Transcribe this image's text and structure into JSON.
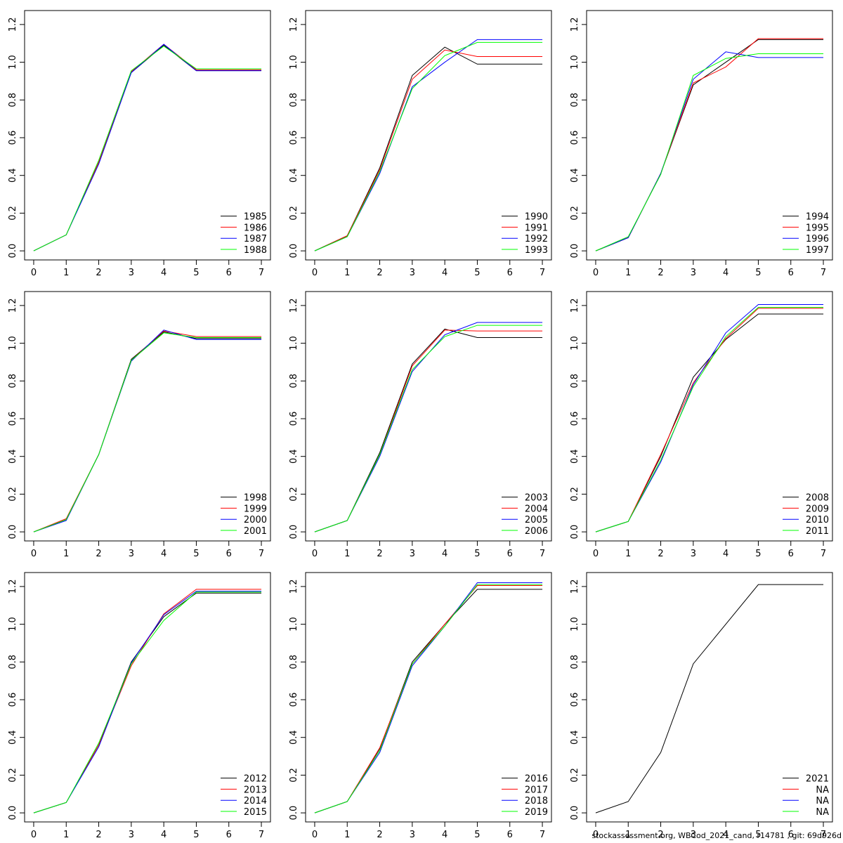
{
  "chart_data": [
    {
      "type": "line",
      "legend": "bottomright",
      "x": [
        0,
        1,
        2,
        3,
        4,
        5,
        6,
        7
      ],
      "xlim": [
        -0.28,
        7.28
      ],
      "xticks": [
        0,
        1,
        2,
        3,
        4,
        5,
        6,
        7
      ],
      "ylim": [
        -0.048,
        1.274
      ],
      "yticks": [
        {
          "value": 0,
          "label": "0.0"
        },
        0.2,
        0.4,
        0.6,
        0.8,
        {
          "value": 1,
          "label": "1.0"
        },
        1.2
      ],
      "series": [
        {
          "name": "1985",
          "color": "#000000",
          "values": [
            0,
            0.085,
            0.47,
            0.945,
            1.09,
            0.955,
            0.955,
            0.955
          ]
        },
        {
          "name": "1986",
          "color": "#ff0000",
          "values": [
            0,
            0.085,
            0.47,
            0.95,
            1.095,
            0.96,
            0.96,
            0.96
          ]
        },
        {
          "name": "1987",
          "color": "#0000ff",
          "values": [
            0,
            0.085,
            0.46,
            0.945,
            1.095,
            0.955,
            0.955,
            0.955
          ]
        },
        {
          "name": "1988",
          "color": "#00ff00",
          "values": [
            0,
            0.085,
            0.48,
            0.955,
            1.085,
            0.965,
            0.965,
            0.965
          ]
        }
      ]
    },
    {
      "type": "line",
      "legend": "bottomright",
      "x": [
        0,
        1,
        2,
        3,
        4,
        5,
        6,
        7
      ],
      "xlim": [
        -0.28,
        7.28
      ],
      "xticks": [
        0,
        1,
        2,
        3,
        4,
        5,
        6,
        7
      ],
      "ylim": [
        -0.048,
        1.274
      ],
      "yticks": [
        {
          "value": 0,
          "label": "0.0"
        },
        0.2,
        0.4,
        0.6,
        0.8,
        {
          "value": 1,
          "label": "1.0"
        },
        1.2
      ],
      "series": [
        {
          "name": "1990",
          "color": "#000000",
          "values": [
            0,
            0.08,
            0.44,
            0.93,
            1.08,
            0.99,
            0.99,
            0.99
          ]
        },
        {
          "name": "1991",
          "color": "#ff0000",
          "values": [
            0,
            0.08,
            0.43,
            0.91,
            1.065,
            1.03,
            1.03,
            1.03
          ]
        },
        {
          "name": "1992",
          "color": "#0000ff",
          "values": [
            0,
            0.075,
            0.41,
            0.87,
            1.0,
            1.12,
            1.12,
            1.12
          ]
        },
        {
          "name": "1993",
          "color": "#00ff00",
          "values": [
            0,
            0.075,
            0.42,
            0.86,
            1.035,
            1.105,
            1.105,
            1.105
          ]
        }
      ]
    },
    {
      "type": "line",
      "legend": "bottomright",
      "x": [
        0,
        1,
        2,
        3,
        4,
        5,
        6,
        7
      ],
      "xlim": [
        -0.28,
        7.28
      ],
      "xticks": [
        0,
        1,
        2,
        3,
        4,
        5,
        6,
        7
      ],
      "ylim": [
        -0.048,
        1.274
      ],
      "yticks": [
        {
          "value": 0,
          "label": "0.0"
        },
        0.2,
        0.4,
        0.6,
        0.8,
        {
          "value": 1,
          "label": "1.0"
        },
        1.2
      ],
      "series": [
        {
          "name": "1994",
          "color": "#000000",
          "values": [
            0,
            0.07,
            0.41,
            0.88,
            1.0,
            1.12,
            1.12,
            1.12
          ]
        },
        {
          "name": "1995",
          "color": "#ff0000",
          "values": [
            0,
            0.07,
            0.41,
            0.89,
            0.975,
            1.125,
            1.125,
            1.125
          ]
        },
        {
          "name": "1996",
          "color": "#0000ff",
          "values": [
            0,
            0.07,
            0.41,
            0.91,
            1.055,
            1.025,
            1.025,
            1.025
          ]
        },
        {
          "name": "1997",
          "color": "#00ff00",
          "values": [
            0,
            0.075,
            0.405,
            0.93,
            1.02,
            1.045,
            1.045,
            1.045
          ]
        }
      ]
    },
    {
      "type": "line",
      "legend": "bottomright",
      "x": [
        0,
        1,
        2,
        3,
        4,
        5,
        6,
        7
      ],
      "xlim": [
        -0.28,
        7.28
      ],
      "xticks": [
        0,
        1,
        2,
        3,
        4,
        5,
        6,
        7
      ],
      "ylim": [
        -0.048,
        1.274
      ],
      "yticks": [
        {
          "value": 0,
          "label": "0.0"
        },
        0.2,
        0.4,
        0.6,
        0.8,
        {
          "value": 1,
          "label": "1.0"
        },
        1.2
      ],
      "series": [
        {
          "name": "1998",
          "color": "#000000",
          "values": [
            0,
            0.065,
            0.41,
            0.915,
            1.06,
            1.025,
            1.025,
            1.025
          ]
        },
        {
          "name": "1999",
          "color": "#ff0000",
          "values": [
            0,
            0.07,
            0.41,
            0.91,
            1.065,
            1.035,
            1.035,
            1.035
          ]
        },
        {
          "name": "2000",
          "color": "#0000ff",
          "values": [
            0,
            0.06,
            0.41,
            0.905,
            1.07,
            1.02,
            1.02,
            1.02
          ]
        },
        {
          "name": "2001",
          "color": "#00ff00",
          "values": [
            0,
            0.065,
            0.41,
            0.91,
            1.055,
            1.03,
            1.03,
            1.03
          ]
        }
      ]
    },
    {
      "type": "line",
      "legend": "bottomright",
      "x": [
        0,
        1,
        2,
        3,
        4,
        5,
        6,
        7
      ],
      "xlim": [
        -0.28,
        7.28
      ],
      "xticks": [
        0,
        1,
        2,
        3,
        4,
        5,
        6,
        7
      ],
      "ylim": [
        -0.048,
        1.274
      ],
      "yticks": [
        {
          "value": 0,
          "label": "0.0"
        },
        0.2,
        0.4,
        0.6,
        0.8,
        {
          "value": 1,
          "label": "1.0"
        },
        1.2
      ],
      "series": [
        {
          "name": "2003",
          "color": "#000000",
          "values": [
            0,
            0.06,
            0.42,
            0.89,
            1.075,
            1.03,
            1.03,
            1.03
          ]
        },
        {
          "name": "2004",
          "color": "#ff0000",
          "values": [
            0,
            0.06,
            0.41,
            0.88,
            1.07,
            1.065,
            1.065,
            1.065
          ]
        },
        {
          "name": "2005",
          "color": "#0000ff",
          "values": [
            0,
            0.06,
            0.4,
            0.85,
            1.045,
            1.11,
            1.11,
            1.11
          ]
        },
        {
          "name": "2006",
          "color": "#00ff00",
          "values": [
            0,
            0.06,
            0.41,
            0.86,
            1.035,
            1.095,
            1.095,
            1.095
          ]
        }
      ]
    },
    {
      "type": "line",
      "legend": "bottomright",
      "x": [
        0,
        1,
        2,
        3,
        4,
        5,
        6,
        7
      ],
      "xlim": [
        -0.28,
        7.28
      ],
      "xticks": [
        0,
        1,
        2,
        3,
        4,
        5,
        6,
        7
      ],
      "ylim": [
        -0.048,
        1.274
      ],
      "yticks": [
        {
          "value": 0,
          "label": "0.0"
        },
        0.2,
        0.4,
        0.6,
        0.8,
        {
          "value": 1,
          "label": "1.0"
        },
        1.2
      ],
      "series": [
        {
          "name": "2008",
          "color": "#000000",
          "values": [
            0,
            0.055,
            0.4,
            0.82,
            1.02,
            1.155,
            1.155,
            1.155
          ]
        },
        {
          "name": "2009",
          "color": "#ff0000",
          "values": [
            0,
            0.055,
            0.41,
            0.79,
            1.025,
            1.185,
            1.185,
            1.185
          ]
        },
        {
          "name": "2010",
          "color": "#0000ff",
          "values": [
            0,
            0.055,
            0.37,
            0.78,
            1.055,
            1.205,
            1.205,
            1.205
          ]
        },
        {
          "name": "2011",
          "color": "#00ff00",
          "values": [
            0,
            0.055,
            0.38,
            0.77,
            1.035,
            1.19,
            1.19,
            1.19
          ]
        }
      ]
    },
    {
      "type": "line",
      "legend": "bottomright",
      "x": [
        0,
        1,
        2,
        3,
        4,
        5,
        6,
        7
      ],
      "xlim": [
        -0.28,
        7.28
      ],
      "xticks": [
        0,
        1,
        2,
        3,
        4,
        5,
        6,
        7
      ],
      "ylim": [
        -0.048,
        1.274
      ],
      "yticks": [
        {
          "value": 0,
          "label": "0.0"
        },
        0.2,
        0.4,
        0.6,
        0.8,
        {
          "value": 1,
          "label": "1.0"
        },
        1.2
      ],
      "series": [
        {
          "name": "2012",
          "color": "#000000",
          "values": [
            0,
            0.055,
            0.36,
            0.8,
            1.04,
            1.165,
            1.165,
            1.165
          ]
        },
        {
          "name": "2013",
          "color": "#ff0000",
          "values": [
            0,
            0.055,
            0.36,
            0.78,
            1.055,
            1.185,
            1.185,
            1.185
          ]
        },
        {
          "name": "2014",
          "color": "#0000ff",
          "values": [
            0,
            0.055,
            0.35,
            0.795,
            1.05,
            1.175,
            1.175,
            1.175
          ]
        },
        {
          "name": "2015",
          "color": "#00ff00",
          "values": [
            0,
            0.055,
            0.37,
            0.79,
            1.02,
            1.17,
            1.17,
            1.17
          ]
        }
      ]
    },
    {
      "type": "line",
      "legend": "bottomright",
      "x": [
        0,
        1,
        2,
        3,
        4,
        5,
        6,
        7
      ],
      "xlim": [
        -0.28,
        7.28
      ],
      "xticks": [
        0,
        1,
        2,
        3,
        4,
        5,
        6,
        7
      ],
      "ylim": [
        -0.048,
        1.274
      ],
      "yticks": [
        {
          "value": 0,
          "label": "0.0"
        },
        0.2,
        0.4,
        0.6,
        0.8,
        {
          "value": 1,
          "label": "1.0"
        },
        1.2
      ],
      "series": [
        {
          "name": "2016",
          "color": "#000000",
          "values": [
            0,
            0.06,
            0.34,
            0.8,
            1.0,
            1.185,
            1.185,
            1.185
          ]
        },
        {
          "name": "2017",
          "color": "#ff0000",
          "values": [
            0,
            0.06,
            0.345,
            0.79,
            1.0,
            1.205,
            1.205,
            1.205
          ]
        },
        {
          "name": "2018",
          "color": "#0000ff",
          "values": [
            0,
            0.06,
            0.32,
            0.78,
            0.99,
            1.22,
            1.22,
            1.22
          ]
        },
        {
          "name": "2019",
          "color": "#00ff00",
          "values": [
            0,
            0.06,
            0.33,
            0.79,
            0.99,
            1.21,
            1.21,
            1.21
          ]
        }
      ]
    },
    {
      "type": "line",
      "legend": "bottomright",
      "x": [
        0,
        1,
        2,
        3,
        4,
        5,
        6,
        7
      ],
      "xlim": [
        -0.28,
        7.28
      ],
      "xticks": [
        0,
        1,
        2,
        3,
        4,
        5,
        6,
        7
      ],
      "ylim": [
        -0.048,
        1.274
      ],
      "yticks": [
        {
          "value": 0,
          "label": "0.0"
        },
        0.2,
        0.4,
        0.6,
        0.8,
        {
          "value": 1,
          "label": "1.0"
        },
        1.2
      ],
      "series": [
        {
          "name": "2021",
          "color": "#000000",
          "values": [
            0,
            0.06,
            0.32,
            0.79,
            1.0,
            1.21,
            1.21,
            1.21
          ]
        },
        {
          "name": "NA",
          "color": "#ff0000",
          "values": [
            null,
            null,
            null,
            null,
            null,
            null,
            null,
            null
          ]
        },
        {
          "name": "NA",
          "color": "#0000ff",
          "values": [
            null,
            null,
            null,
            null,
            null,
            null,
            null,
            null
          ]
        },
        {
          "name": "NA",
          "color": "#00ff00",
          "values": [
            null,
            null,
            null,
            null,
            null,
            null,
            null,
            null
          ]
        }
      ]
    }
  ],
  "footer": "stockassessment.org, WBCod_2021_cand, r14781 , git: 69d926d"
}
